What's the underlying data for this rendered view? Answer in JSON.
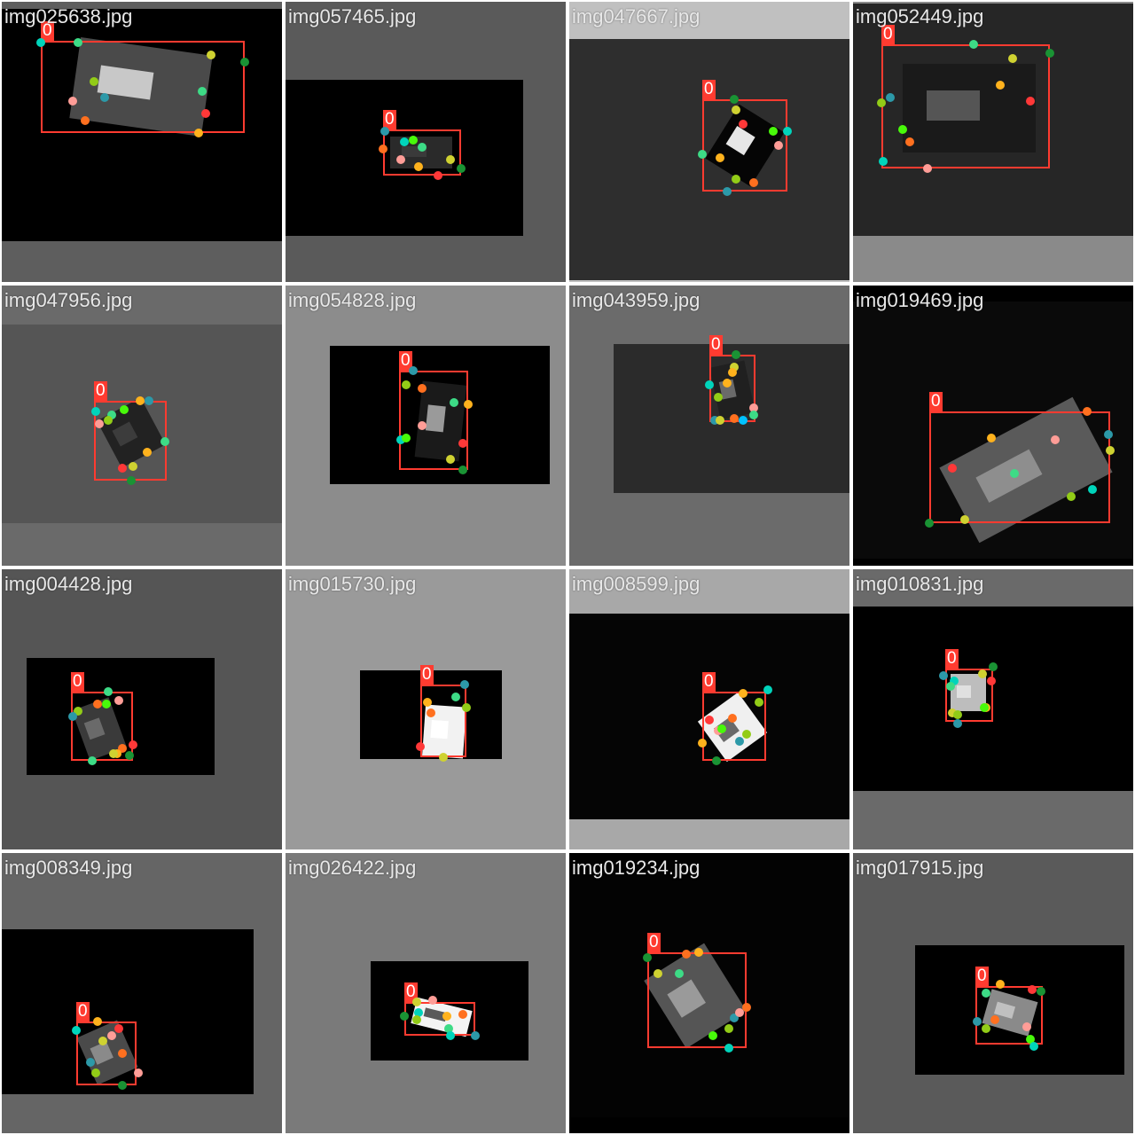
{
  "grid": {
    "columns": 4,
    "rows": 4,
    "class_label": "0",
    "keypoint_palette": [
      "#ff3838",
      "#ff9d97",
      "#ff701f",
      "#ffb21d",
      "#cfd231",
      "#48f90a",
      "#92cc17",
      "#3ddb86",
      "#1a9334",
      "#00d4bb",
      "#2c99a8",
      "#00c2ff"
    ],
    "tiles": [
      {
        "filename": "img025638.jpg",
        "background": "#5e5e5e",
        "photo_color": "#000000",
        "craft_color": "#4a4a4a",
        "craft_light": "#c8c8c8"
      },
      {
        "filename": "img057465.jpg",
        "background": "#5a5a5a",
        "photo_color": "#000000",
        "craft_color": "#2a2a2a",
        "craft_light": "#3a3a3a"
      },
      {
        "filename": "img047667.jpg",
        "background": "#c0c0c0",
        "photo_color": "#2e2e2e",
        "craft_color": "#050505",
        "craft_light": "#e6e6e6"
      },
      {
        "filename": "img052449.jpg",
        "background": "#8a8a8a",
        "photo_color": "#262626",
        "craft_color": "#1a1a1a",
        "craft_light": "#555555"
      },
      {
        "filename": "img047956.jpg",
        "background": "#6a6a6a",
        "photo_color": "#555555",
        "craft_color": "#222222",
        "craft_light": "#3c3c3c"
      },
      {
        "filename": "img054828.jpg",
        "background": "#8c8c8c",
        "photo_color": "#000000",
        "craft_color": "#1a1a1a",
        "craft_light": "#9a9a9a"
      },
      {
        "filename": "img043959.jpg",
        "background": "#6b6b6b",
        "photo_color": "#2b2b2b",
        "craft_color": "#202020",
        "craft_light": "#6a6a6a"
      },
      {
        "filename": "img019469.jpg",
        "background": "#000000",
        "photo_color": "#0a0a0a",
        "craft_color": "#5a5a5a",
        "craft_light": "#8e8e8e"
      },
      {
        "filename": "img004428.jpg",
        "background": "#555555",
        "photo_color": "#000000",
        "craft_color": "#3a3a3a",
        "craft_light": "#6a6a6a"
      },
      {
        "filename": "img015730.jpg",
        "background": "#9a9a9a",
        "photo_color": "#000000",
        "craft_color": "#f2f2f2",
        "craft_light": "#ffffff"
      },
      {
        "filename": "img008599.jpg",
        "background": "#a8a8a8",
        "photo_color": "#050505",
        "craft_color": "#f0f0f0",
        "craft_light": "#6a6a6a"
      },
      {
        "filename": "img010831.jpg",
        "background": "#6a6a6a",
        "photo_color": "#000000",
        "craft_color": "#bdbdbd",
        "craft_light": "#e0e0e0"
      },
      {
        "filename": "img008349.jpg",
        "background": "#656565",
        "photo_color": "#000000",
        "craft_color": "#4a4a4a",
        "craft_light": "#8a8a8a"
      },
      {
        "filename": "img026422.jpg",
        "background": "#7a7a7a",
        "photo_color": "#000000",
        "craft_color": "#f4f4f4",
        "craft_light": "#5a5a5a"
      },
      {
        "filename": "img019234.jpg",
        "background": "#000000",
        "photo_color": "#030303",
        "craft_color": "#555555",
        "craft_light": "#9a9a9a"
      },
      {
        "filename": "img017915.jpg",
        "background": "#5a5a5a",
        "photo_color": "#000000",
        "craft_color": "#8a8a8a",
        "craft_light": "#c0c0c0"
      }
    ]
  }
}
